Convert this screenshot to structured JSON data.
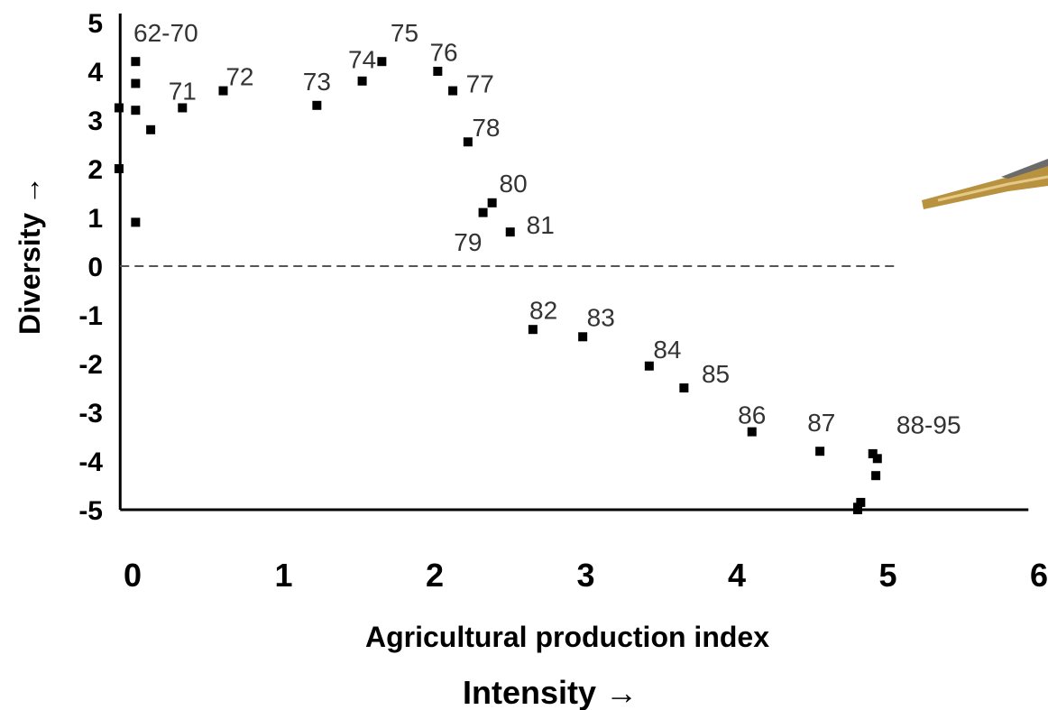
{
  "chart_data": {
    "type": "scatter",
    "xlabel": "Agricultural production index",
    "xlabel2": "Intensity →",
    "ylabel": "Diversity →",
    "xlim": [
      -0.1,
      6
    ],
    "ylim": [
      -5,
      5
    ],
    "x_ticks": [
      "0",
      "1",
      "2",
      "3",
      "4",
      "5",
      "6"
    ],
    "y_ticks": [
      "5",
      "4",
      "3",
      "2",
      "1",
      "0",
      "-1",
      "-2",
      "-3",
      "-4",
      "-5"
    ],
    "reference_line": {
      "y": 0,
      "style": "dashed"
    },
    "points": [
      {
        "x": -0.09,
        "y": 3.25
      },
      {
        "x": -0.09,
        "y": 2.0
      },
      {
        "x": 0.02,
        "y": 4.2
      },
      {
        "x": 0.02,
        "y": 3.75
      },
      {
        "x": 0.02,
        "y": 3.2
      },
      {
        "x": 0.12,
        "y": 2.8
      },
      {
        "x": 0.02,
        "y": 0.9
      },
      {
        "x": 0.33,
        "y": 3.25
      },
      {
        "x": 0.6,
        "y": 3.6
      },
      {
        "x": 1.22,
        "y": 3.3
      },
      {
        "x": 1.52,
        "y": 3.8
      },
      {
        "x": 1.65,
        "y": 4.2
      },
      {
        "x": 2.02,
        "y": 4.0
      },
      {
        "x": 2.12,
        "y": 3.6
      },
      {
        "x": 2.22,
        "y": 2.55
      },
      {
        "x": 2.32,
        "y": 1.1
      },
      {
        "x": 2.38,
        "y": 1.3
      },
      {
        "x": 2.5,
        "y": 0.7
      },
      {
        "x": 2.65,
        "y": -1.3
      },
      {
        "x": 2.98,
        "y": -1.45
      },
      {
        "x": 3.42,
        "y": -2.05
      },
      {
        "x": 3.65,
        "y": -2.5
      },
      {
        "x": 4.1,
        "y": -3.4
      },
      {
        "x": 4.55,
        "y": -3.8
      },
      {
        "x": 4.9,
        "y": -3.85
      },
      {
        "x": 4.93,
        "y": -3.95
      },
      {
        "x": 4.92,
        "y": -4.3
      },
      {
        "x": 4.82,
        "y": -4.85
      },
      {
        "x": 4.8,
        "y": -4.95
      },
      {
        "x": 4.8,
        "y": -5.0
      }
    ],
    "annotations": [
      {
        "text": "62-70",
        "x": 0.22,
        "y": 4.8
      },
      {
        "text": "71",
        "x": 0.33,
        "y": 3.6
      },
      {
        "text": "72",
        "x": 0.71,
        "y": 3.9
      },
      {
        "text": "73",
        "x": 1.22,
        "y": 3.8
      },
      {
        "text": "74",
        "x": 1.52,
        "y": 4.25
      },
      {
        "text": "75",
        "x": 1.8,
        "y": 4.8
      },
      {
        "text": "76",
        "x": 2.06,
        "y": 4.4
      },
      {
        "text": "77",
        "x": 2.3,
        "y": 3.75
      },
      {
        "text": "78",
        "x": 2.34,
        "y": 2.85
      },
      {
        "text": "79",
        "x": 2.22,
        "y": 0.5
      },
      {
        "text": "80",
        "x": 2.52,
        "y": 1.7
      },
      {
        "text": "81",
        "x": 2.7,
        "y": 0.85
      },
      {
        "text": "82",
        "x": 2.72,
        "y": -0.9
      },
      {
        "text": "83",
        "x": 3.1,
        "y": -1.05
      },
      {
        "text": "84",
        "x": 3.54,
        "y": -1.7
      },
      {
        "text": "85",
        "x": 3.86,
        "y": -2.2
      },
      {
        "text": "86",
        "x": 4.1,
        "y": -3.05
      },
      {
        "text": "87",
        "x": 4.56,
        "y": -3.2
      },
      {
        "text": "88-95",
        "x": 5.27,
        "y": -3.25
      }
    ]
  }
}
